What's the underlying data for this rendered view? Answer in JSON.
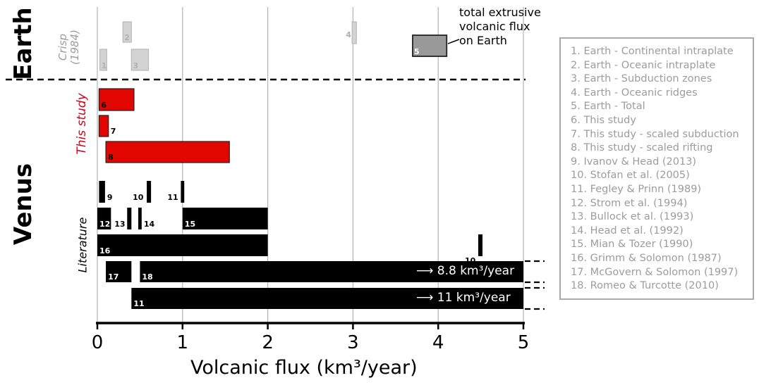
{
  "group_labels": {
    "earth": "Earth",
    "venus": "Venus",
    "crisp_line1": "Crisp",
    "crisp_line2": "(1984)",
    "this_study": "This study",
    "literature": "Literature"
  },
  "annotation_total": [
    "total extrusive",
    "volcanic flux",
    "on Earth"
  ],
  "arrow_labels": [
    {
      "id": "18",
      "text": "⟶ 8.8 km³/year"
    },
    {
      "id": "11",
      "text": "⟶ 11  km³/year"
    }
  ],
  "legend": [
    "1. Earth - Continental intraplate",
    "2. Earth - Oceanic intraplate",
    "3. Earth - Subduction zones",
    "4. Earth - Oceanic ridges",
    "5. Earth - Total",
    "6. This study",
    "7. This study - scaled subduction",
    "8. This study - scaled rifting",
    "9. Ivanov & Head (2013)",
    "10. Stofan et al. (2005)",
    "11. Fegley & Prinn (1989)",
    "12. Strom et al. (1994)",
    "13. Bullock et al. (1993)",
    "14. Head et al. (1992)",
    "15. Mian & Tozer (1990)",
    "16. Grimm & Solomon (1987)",
    "17. McGovern & Solomon (1997)",
    "18. Romeo & Turcotte (2010)"
  ],
  "colors": {
    "earth_crisp": "#d3d3d3",
    "earth_total": "#999999",
    "this_study": "#e10600",
    "literature": "#000000",
    "grid": "#b4b4b4",
    "legend_text": "#9c9c9c"
  },
  "chart_data": {
    "type": "bar",
    "orientation": "horizontal-range",
    "title": "",
    "xlabel": "Volcanic flux (km³/year)",
    "xlim": [
      0,
      5
    ],
    "xticks": [
      "0",
      "1",
      "2",
      "3",
      "4",
      "5"
    ],
    "grid": true,
    "legend_placement": "right",
    "series": [
      {
        "id": "1",
        "group": "Earth",
        "range": [
          0.03,
          0.11
        ]
      },
      {
        "id": "2",
        "group": "Earth",
        "range": [
          0.3,
          0.4
        ]
      },
      {
        "id": "3",
        "group": "Earth",
        "range": [
          0.4,
          0.6
        ]
      },
      {
        "id": "4",
        "group": "Earth",
        "range": [
          2.99,
          3.04
        ]
      },
      {
        "id": "5",
        "group": "Earth",
        "range": [
          3.7,
          4.1
        ]
      },
      {
        "id": "6",
        "group": "This study",
        "range": [
          0.02,
          0.43
        ]
      },
      {
        "id": "7",
        "group": "This study",
        "range": [
          0.02,
          0.13
        ]
      },
      {
        "id": "8",
        "group": "This study",
        "range": [
          0.1,
          1.55
        ]
      },
      {
        "id": "9",
        "group": "Literature",
        "range": [
          0.02,
          0.09
        ]
      },
      {
        "id": "10",
        "group": "Literature",
        "range": [
          0.58,
          0.63
        ]
      },
      {
        "id": "11",
        "group": "Literature",
        "range": [
          0.98,
          1.02
        ]
      },
      {
        "id": "12",
        "group": "Literature",
        "range": [
          0.0,
          0.16
        ]
      },
      {
        "id": "13",
        "group": "Literature",
        "range": [
          0.35,
          0.4
        ]
      },
      {
        "id": "14",
        "group": "Literature",
        "range": [
          0.48,
          0.52
        ]
      },
      {
        "id": "15",
        "group": "Literature",
        "range": [
          1.0,
          2.0
        ]
      },
      {
        "id": "16",
        "group": "Literature",
        "range": [
          0.0,
          2.0
        ]
      },
      {
        "id": "10",
        "group": "Literature",
        "range": [
          4.47,
          4.52
        ]
      },
      {
        "id": "17",
        "group": "Literature",
        "range": [
          0.1,
          0.4
        ]
      },
      {
        "id": "18",
        "group": "Literature",
        "range": [
          0.5,
          8.8
        ]
      },
      {
        "id": "11",
        "group": "Literature",
        "range": [
          0.4,
          11
        ]
      }
    ]
  }
}
